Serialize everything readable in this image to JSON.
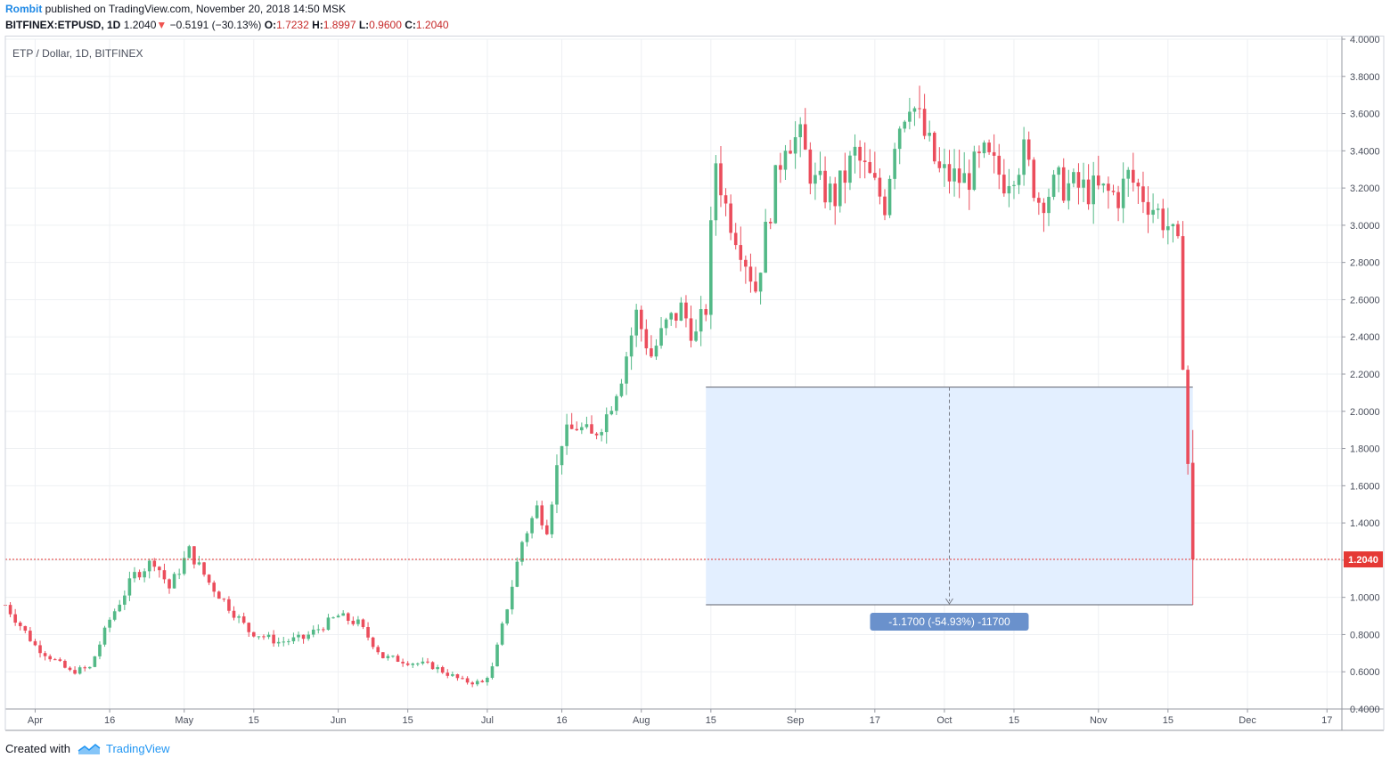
{
  "header": {
    "author": "Rombit",
    "published_text": "published on TradingView.com, November 20, 2018 14:50 MSK",
    "symbol": "BITFINEX:ETPUSD, 1D",
    "last": "1.2040",
    "change": "−0.5191 (−30.13%)",
    "open_label": "O:",
    "open": "1.7232",
    "high_label": "H:",
    "high": "1.8997",
    "low_label": "L:",
    "low": "0.9600",
    "close_label": "C:",
    "close": "1.2040"
  },
  "chart_title": "ETP / Dollar, 1D, BITFINEX",
  "price_badge": "1.2040",
  "measure_label": "-1.1700 (-54.93%) -11700",
  "footer": {
    "created_with": "Created with",
    "brand": "TradingView"
  },
  "colors": {
    "up": "#53b987",
    "down": "#eb4d5c",
    "measure_fill": "#e3efff",
    "measure_label_bg": "#6a91cc",
    "last_price_line": "#e53935",
    "brand": "#2196f3"
  },
  "chart_data": {
    "type": "candlestick",
    "title": "ETP / Dollar, 1D, BITFINEX",
    "ylim": [
      0.4,
      4.0
    ],
    "y_ticks": [
      "4.0000",
      "3.8000",
      "3.6000",
      "3.4000",
      "3.2000",
      "3.0000",
      "2.8000",
      "2.6000",
      "2.4000",
      "2.2000",
      "2.0000",
      "1.8000",
      "1.6000",
      "1.4000",
      "1.2000",
      "1.0000",
      "0.8000",
      "0.6000",
      "0.4000"
    ],
    "x_ticks": [
      {
        "label": "Apr",
        "date": "2018-04-01"
      },
      {
        "label": "16",
        "date": "2018-04-16"
      },
      {
        "label": "May",
        "date": "2018-05-01"
      },
      {
        "label": "15",
        "date": "2018-05-15"
      },
      {
        "label": "Jun",
        "date": "2018-06-01"
      },
      {
        "label": "15",
        "date": "2018-06-15"
      },
      {
        "label": "Jul",
        "date": "2018-07-01"
      },
      {
        "label": "16",
        "date": "2018-07-16"
      },
      {
        "label": "Aug",
        "date": "2018-08-01"
      },
      {
        "label": "15",
        "date": "2018-08-15"
      },
      {
        "label": "Sep",
        "date": "2018-09-01"
      },
      {
        "label": "17",
        "date": "2018-09-17"
      },
      {
        "label": "Oct",
        "date": "2018-10-01"
      },
      {
        "label": "15",
        "date": "2018-10-15"
      },
      {
        "label": "Nov",
        "date": "2018-11-01"
      },
      {
        "label": "15",
        "date": "2018-11-15"
      },
      {
        "label": "Dec",
        "date": "2018-12-01"
      },
      {
        "label": "17",
        "date": "2018-12-17"
      }
    ],
    "x_range": [
      "2018-03-26",
      "2018-12-20"
    ],
    "close_path": [
      [
        "2018-03-26",
        0.96
      ],
      [
        "2018-04-01",
        0.74
      ],
      [
        "2018-04-08",
        0.6
      ],
      [
        "2018-04-12",
        0.62
      ],
      [
        "2018-04-16",
        0.88
      ],
      [
        "2018-04-21",
        1.12
      ],
      [
        "2018-04-25",
        1.2
      ],
      [
        "2018-04-28",
        1.05
      ],
      [
        "2018-05-02",
        1.25
      ],
      [
        "2018-05-06",
        1.08
      ],
      [
        "2018-05-10",
        0.95
      ],
      [
        "2018-05-14",
        0.82
      ],
      [
        "2018-05-20",
        0.76
      ],
      [
        "2018-05-25",
        0.78
      ],
      [
        "2018-06-01",
        0.9
      ],
      [
        "2018-06-05",
        0.86
      ],
      [
        "2018-06-10",
        0.68
      ],
      [
        "2018-06-20",
        0.63
      ],
      [
        "2018-06-26",
        0.55
      ],
      [
        "2018-06-30",
        0.54
      ],
      [
        "2018-07-02",
        0.62
      ],
      [
        "2018-07-05",
        0.95
      ],
      [
        "2018-07-08",
        1.3
      ],
      [
        "2018-07-11",
        1.48
      ],
      [
        "2018-07-13",
        1.38
      ],
      [
        "2018-07-16",
        1.85
      ],
      [
        "2018-07-19",
        1.92
      ],
      [
        "2018-07-22",
        1.86
      ],
      [
        "2018-07-25",
        1.98
      ],
      [
        "2018-07-28",
        2.2
      ],
      [
        "2018-07-31",
        2.52
      ],
      [
        "2018-08-03",
        2.3
      ],
      [
        "2018-08-06",
        2.46
      ],
      [
        "2018-08-09",
        2.55
      ],
      [
        "2018-08-12",
        2.4
      ],
      [
        "2018-08-14",
        2.56
      ],
      [
        "2018-08-16",
        3.35
      ],
      [
        "2018-08-18",
        3.1
      ],
      [
        "2018-08-21",
        2.9
      ],
      [
        "2018-08-24",
        2.66
      ],
      [
        "2018-08-27",
        3.1
      ],
      [
        "2018-08-30",
        3.48
      ],
      [
        "2018-09-02",
        3.45
      ],
      [
        "2018-09-05",
        3.22
      ],
      [
        "2018-09-09",
        3.15
      ],
      [
        "2018-09-13",
        3.38
      ],
      [
        "2018-09-17",
        3.2
      ],
      [
        "2018-09-19",
        3.12
      ],
      [
        "2018-09-21",
        3.48
      ],
      [
        "2018-09-24",
        3.7
      ],
      [
        "2018-09-27",
        3.48
      ],
      [
        "2018-09-30",
        3.28
      ],
      [
        "2018-10-05",
        3.24
      ],
      [
        "2018-10-09",
        3.36
      ],
      [
        "2018-10-13",
        3.25
      ],
      [
        "2018-10-17",
        3.38
      ],
      [
        "2018-10-20",
        3.14
      ],
      [
        "2018-10-24",
        3.22
      ],
      [
        "2018-11-01",
        3.18
      ],
      [
        "2018-11-05",
        3.16
      ],
      [
        "2018-11-07",
        3.26
      ],
      [
        "2018-11-12",
        3.1
      ],
      [
        "2018-11-15",
        3.0
      ],
      [
        "2018-11-17",
        2.86
      ],
      [
        "2018-11-19",
        1.72
      ],
      [
        "2018-11-20",
        1.204
      ]
    ],
    "last_candle": {
      "date": "2018-11-20",
      "open": 1.7232,
      "high": 1.8997,
      "low": 0.96,
      "close": 1.204
    },
    "last_price": 1.204,
    "measure": {
      "from_date": "2018-08-14",
      "to_date": "2018-11-20",
      "top": 2.13,
      "bottom": 0.96
    }
  }
}
